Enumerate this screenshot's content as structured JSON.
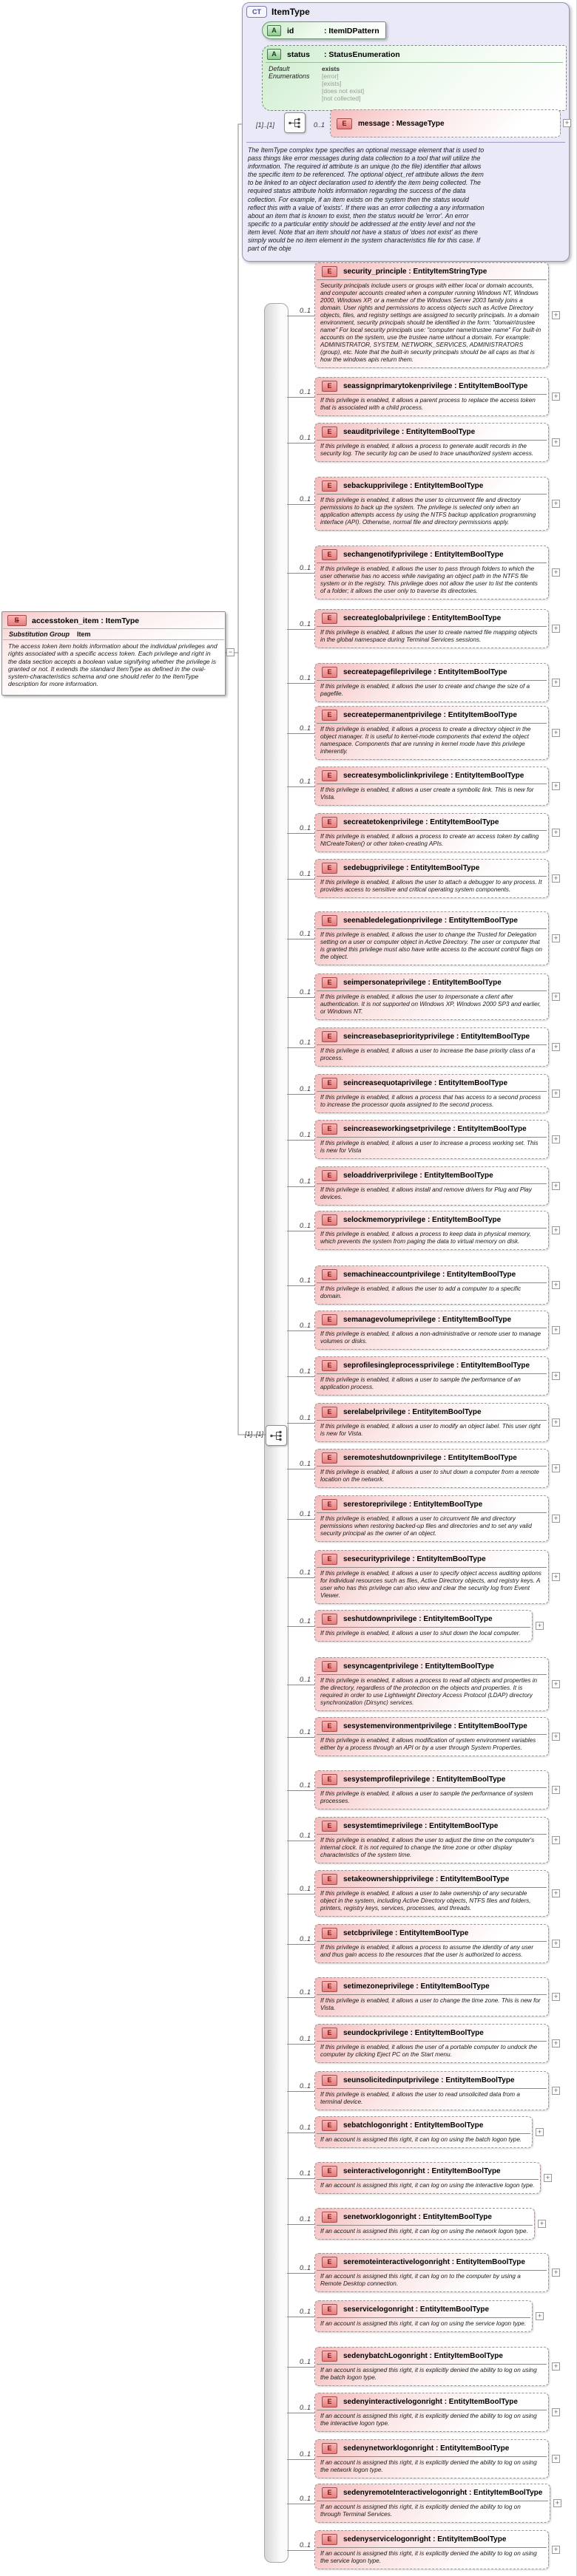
{
  "diagram": {
    "colors": {
      "element_pink": "#f5baba",
      "attribute_green": "#cdeccd",
      "container_lavender": "#e9e9f8",
      "border_gray": "#9a9a9a"
    },
    "expand_glyph": "+",
    "collapse_glyph": "−",
    "item_type": {
      "icon_label": "CT",
      "title": "ItemType",
      "attr_id": {
        "icon_label": "A",
        "name": "id",
        "type": ": ItemIDPattern"
      },
      "attr_status": {
        "icon_label": "A",
        "name": "status",
        "type": ": StatusEnumeration",
        "facets_label": "Default Enumerations",
        "default_value": "exists",
        "enumerations": [
          "[error]",
          "[exists]",
          "[does not exist]",
          "[not collected]"
        ]
      },
      "sequence_occurrence": "[1]..[1]",
      "message_occurrence": "0..1",
      "message_icon": "E",
      "message_label": "message : MessageType",
      "documentation": "The ItemType complex type specifies an optional message element that is used to pass things like error messages during data collection to a tool that will utilize the information. The required id attribute is an unique (to the file) identifier that allows the specific item to be referenced. The optional object_ref attribute allows the item to be linked to an object declaration used to identify the item being collected. The required status attribute holds information regarding the success of the data collection. For example, if an item exists on the system then the status would reflect this with a value of 'exists'. If there was an error collecting a any information about an item that is known to exist, then the status would be 'error'. An error specific to a particular entity should be addressed at the entity level and not the item level. Note that an item should not have a status of 'does not exist' as there simply would be no item element in the system characteristics file for this case. If part of the obje"
    },
    "access_token_item": {
      "icon_label": "E",
      "icon_plus": "+",
      "title": "accesstoken_item : ItemType",
      "substitution_label": "Substitution Group",
      "substitution_value": "Item",
      "documentation": "The access token item holds information about the individual privileges and rights associated with a specific access token. Each privilege and right in the data section accepts a boolean value signifying whether the privilege is granted or not. It extends the standard ItemType as defined in the oval-system-characteristics schema and one should refer to the ItemType description for more information."
    },
    "extension_sequence_occurrence": "[1]..[1]",
    "element_occurrence": "0..1",
    "element_icon": "E",
    "elements": [
      {
        "name": "security_principle",
        "type": "EntityItemStringType",
        "doc": "Security principals include users or groups with either local or domain accounts, and computer accounts created when a computer running Windows NT, Windows 2000, Windows XP, or a member of the Windows Server 2003 family joins a domain. User rights and permissions to access objects such as Active Directory objects, files, and registry settings are assigned to security principals. In a domain environment, security principals should be identified in the form: \"domain\\trustee name\" For local security principals use: \"computer name\\trustee name\" For built-in accounts on the system, use the trustee name without a domain. For example: ADMINISTRATOR, SYSTEM, NETWORK_SERVICES, ADMINISTRATORS (group), etc. Note that the built-in security principals should be all caps as that is how the windows apis return them."
      },
      {
        "name": "seassignprimarytokenprivilege",
        "type": "EntityItemBoolType",
        "doc": "If this privilege is enabled, it allows a parent process to replace the access token that is associated with a child process."
      },
      {
        "name": "seauditprivilege",
        "type": "EntityItemBoolType",
        "doc": "If this privilege is enabled, it allows a process to generate audit records in the security log. The security log can be used to trace unauthorized system access."
      },
      {
        "name": "sebackupprivilege",
        "type": "EntityItemBoolType",
        "doc": "If this privilege is enabled, it allows the user to circumvent file and directory permissions to back up the system. The privilege is selected only when an application attempts access by using the NTFS backup application programming interface (API). Otherwise, normal file and directory permissions apply."
      },
      {
        "name": "sechangenotifyprivilege",
        "type": "EntityItemBoolType",
        "doc": "If this privilege is enabled, it allows the user to pass through folders to which the user otherwise has no access while navigating an object path in the NTFS file system or in the registry. This privilege does not allow the user to list the contents of a folder; it allows the user only to traverse its directories."
      },
      {
        "name": "secreateglobalprivilege",
        "type": "EntityItemBoolType",
        "doc": "If this privilege is enabled, it allows the user to create named file mapping objects in the global namespace during Terminal Services sessions."
      },
      {
        "name": "secreatepagefileprivilege",
        "type": "EntityItemBoolType",
        "doc": "If this privilege is enabled, it allows the user to create and change the size of a pagefile."
      },
      {
        "name": "secreatepermanentprivilege",
        "type": "EntityItemBoolType",
        "doc": "If this privilege is enabled, it allows a process to create a directory object in the object manager. It is useful to kernel-mode components that extend the object namespace. Components that are running in kernel mode have this privilege inherently."
      },
      {
        "name": "secreatesymboliclinkprivilege",
        "type": "EntityItemBoolType",
        "doc": "If this privilege is enabled, it allows a user create a symbolic link.  This is new for Vista."
      },
      {
        "name": "secreatetokenprivilege",
        "type": "EntityItemBoolType",
        "doc": "If this privilege is enabled, it allows a process to create an access token by calling NtCreateToken() or other token-creating APIs."
      },
      {
        "name": "sedebugprivilege",
        "type": "EntityItemBoolType",
        "doc": "If this privilege is enabled, it allows the user to attach a debugger to any process. It provides access to sensitive and critical operating system components."
      },
      {
        "name": "seenabledelegationprivilege",
        "type": "EntityItemBoolType",
        "doc": "If this privilege is enabled, it allows the user to change the Trusted for Delegation setting on a user or computer object in Active Directory. The user or computer that is granted this privilege must also have write access to the account control flags on the object."
      },
      {
        "name": "seimpersonateprivilege",
        "type": "EntityItemBoolType",
        "doc": "If this privilege is enabled, it allows the user to impersonate a client after authentication. It is not supported on Windows XP, Windows 2000 SP3 and earlier, or Windows NT."
      },
      {
        "name": "seincreasebasepriorityprivilege",
        "type": "EntityItemBoolType",
        "doc": "If this privilege is enabled, it allows a user to increase the base priority class of a process."
      },
      {
        "name": "seincreasequotaprivilege",
        "type": "EntityItemBoolType",
        "doc": "If this privilege is enabled, it allows a process that has access to a second process to increase the processor quota assigned to the second process."
      },
      {
        "name": "seincreaseworkingsetprivilege",
        "type": "EntityItemBoolType",
        "doc": "If this privilege is enabled, it allows a user to increase a process working set.  This is new for Vista"
      },
      {
        "name": "seloaddriverprivilege",
        "type": "EntityItemBoolType",
        "doc": "If this privilege is enabled, it allows install and remove drivers for Plug and Play devices."
      },
      {
        "name": "selockmemoryprivilege",
        "type": "EntityItemBoolType",
        "doc": "If this privilege is enabled, it allows a process to keep data in physical memory, which prevents the system from paging the data to virtual memory on disk."
      },
      {
        "name": "semachineaccountprivilege",
        "type": "EntityItemBoolType",
        "doc": "If this privilege is enabled, it allows the user to add a computer to a specific domain."
      },
      {
        "name": "semanagevolumeprivilege",
        "type": "EntityItemBoolType",
        "doc": "If this privilege is enabled, it allows a non-administrative or remote user to manage volumes or disks."
      },
      {
        "name": "seprofilesingleprocessprivilege",
        "type": "EntityItemBoolType",
        "doc": "If this privilege is enabled, it allows a user to sample the performance of an application process."
      },
      {
        "name": "serelabelprivilege",
        "type": "EntityItemBoolType",
        "doc": "If this privilege is enabled, it allows a user to modify an object label.  This user right is new for Vista."
      },
      {
        "name": "seremoteshutdownprivilege",
        "type": "EntityItemBoolType",
        "doc": "If this privilege is enabled, it allows a user to shut down a computer from a remote location on the network."
      },
      {
        "name": "serestoreprivilege",
        "type": "EntityItemBoolType",
        "doc": "If this privilege is enabled, it allows a user to circumvent file and directory permissions when restoring backed-up files and directories and to set any valid security principal as the owner of an object."
      },
      {
        "name": "sesecurityprivilege",
        "type": "EntityItemBoolType",
        "doc": "If this privilege is enabled, it allows a user to specify object access auditing options for individual resources such as files, Active Directory objects, and registry keys. A user who has this privilege can also view and clear the security log from Event Viewer."
      },
      {
        "name": "seshutdownprivilege",
        "type": "EntityItemBoolType",
        "doc": "If this privilege is enabled, it allows a user to shut down the local computer."
      },
      {
        "name": "sesyncagentprivilege",
        "type": "EntityItemBoolType",
        "doc": "If this privilege is enabled, it allows a process to read all objects and properties in the directory, regardless of the protection on the objects and properties. It is required in order to use Lightweight Directory Access Protocol (LDAP) directory synchronization (Dirsync) services."
      },
      {
        "name": "sesystemenvironmentprivilege",
        "type": "EntityItemBoolType",
        "doc": "If this privilege is enabled, it allows modification of system environment variables either by a process through an API or by a user through System Properties."
      },
      {
        "name": "sesystemprofileprivilege",
        "type": "EntityItemBoolType",
        "doc": "If this privilege is enabled, it allows a user to sample the performance of system processes."
      },
      {
        "name": "sesystemtimeprivilege",
        "type": "EntityItemBoolType",
        "doc": "If this privilege is enabled, it allows the user to adjust the time on the computer's internal clock. It is not required to change the time zone or other display characteristics of the system time."
      },
      {
        "name": "setakeownershipprivilege",
        "type": "EntityItemBoolType",
        "doc": "If this privilege is enabled, it allows a user to take ownership of any securable object in the system, including Active Directory objects, NTFS files and folders, printers, registry keys, services, processes, and threads."
      },
      {
        "name": "setcbprivilege",
        "type": "EntityItemBoolType",
        "doc": "If this privilege is enabled, it allows a process to assume the identity of any user and thus gain access to the resources that the user is authorized to access."
      },
      {
        "name": "setimezoneprivilege",
        "type": "EntityItemBoolType",
        "doc": "If this privilege is enabled, it allows a user to change the time zone.  This is new for Vista."
      },
      {
        "name": "seundockprivilege",
        "type": "EntityItemBoolType",
        "doc": "If this privilege is enabled, it allows the user of a portable computer to undock the computer by clicking Eject PC on the Start menu."
      },
      {
        "name": "seunsolicitedinputprivilege",
        "type": "EntityItemBoolType",
        "doc": "If this privilege is enabled, it allows the user to read unsolicited data from a terminal device."
      },
      {
        "name": "sebatchlogonright",
        "type": "EntityItemBoolType",
        "doc": "If an account is assigned this right, it can log on using the batch logon type."
      },
      {
        "name": "seinteractivelogonright",
        "type": "EntityItemBoolType",
        "doc": "If an account is assigned this right, it can log on using the interactive logon type."
      },
      {
        "name": "senetworklogonright",
        "type": "EntityItemBoolType",
        "doc": "If an account is assigned this right, it can log on using the network logon type."
      },
      {
        "name": "seremoteinteractivelogonright",
        "type": "EntityItemBoolType",
        "doc": "If an account is assigned this right, it can log on to the computer by using a Remote Desktop connection."
      },
      {
        "name": "seservicelogonright",
        "type": "EntityItemBoolType",
        "doc": "If an account is assigned this right, it can log on using the service logon type."
      },
      {
        "name": "sedenybatchLogonright",
        "type": "EntityItemBoolType",
        "doc": "If an account is assigned this right, it is explicitly denied the ability to log on using the batch logon type."
      },
      {
        "name": "sedenyinteractivelogonright",
        "type": "EntityItemBoolType",
        "doc": "If an account is assigned this right, it is explicitly denied the ability to log on using the interactive logon type."
      },
      {
        "name": "sedenynetworklogonright",
        "type": "EntityItemBoolType",
        "doc": "If an account is assigned this right, it is explicitly denied the ability to log on using the network logon type."
      },
      {
        "name": "sedenyremoteInteractivelogonright",
        "type": "EntityItemBoolType",
        "doc": "If an account is assigned this right, it is explicitly denied the ability to log on through Terminal Services."
      },
      {
        "name": "sedenyservicelogonright",
        "type": "EntityItemBoolType",
        "doc": "If an account is assigned this right, it is explicitly denied the ability to log on using the service logon type."
      }
    ]
  }
}
